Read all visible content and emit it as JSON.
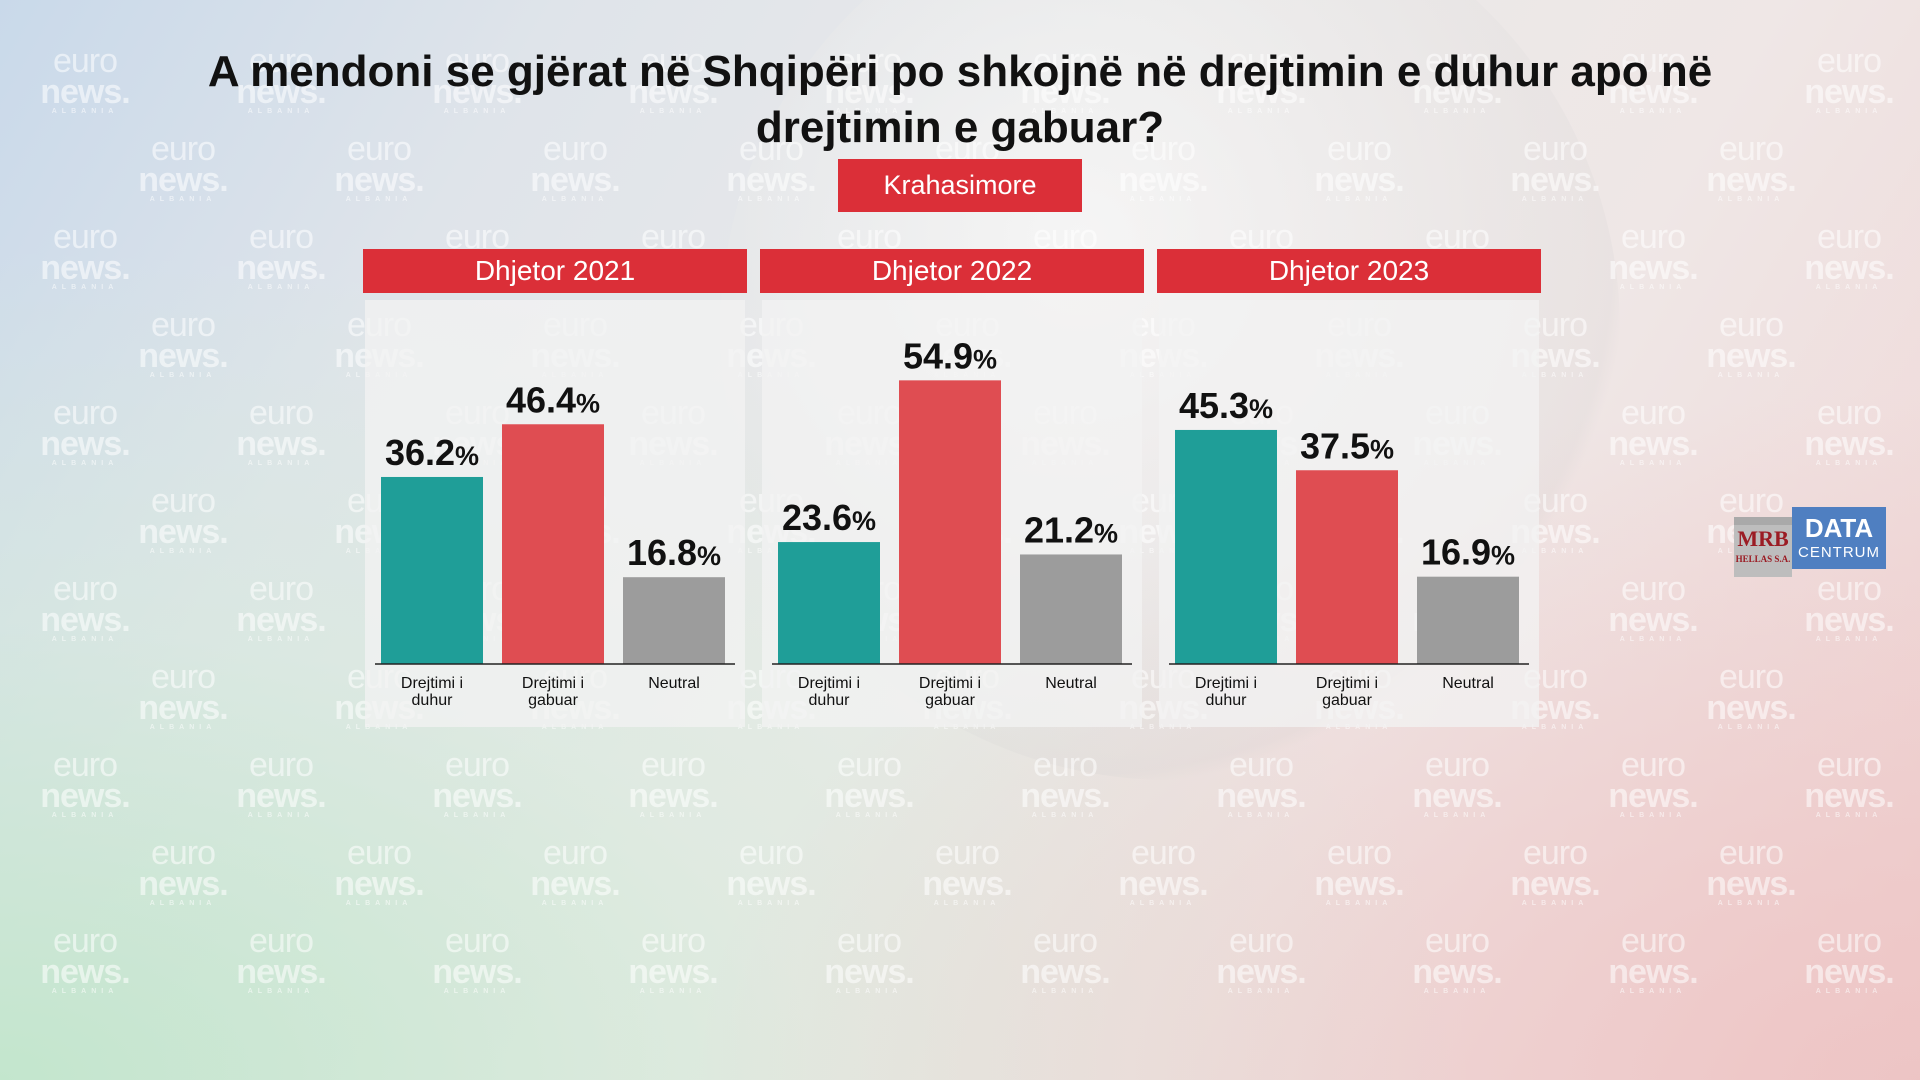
{
  "title": "A mendoni se gjërat në Shqipëri po shkojnë në drejtimin e duhur apo në drejtimin e gabuar?",
  "subtitle_tag": "Krahasimore",
  "watermark": {
    "line1": "euro",
    "line2": "news.",
    "line3": "ALBANIA"
  },
  "logo": {
    "mrb": "MRB",
    "mrb_sub": "HELLAS S.A.",
    "dc_top": "DATA",
    "dc_bottom": "CENTRUM"
  },
  "colors": {
    "accent_red": "#db2f38",
    "teal": "#1f9e98",
    "red_bar": "#df4d52",
    "gray_bar": "#9c9c9c"
  },
  "chart_data": [
    {
      "type": "bar",
      "title": "Dhjetor 2021",
      "categories": [
        "Drejtimi i duhur",
        "Drejtimi i gabuar",
        "Neutral"
      ],
      "values": [
        36.2,
        46.4,
        16.8
      ],
      "value_labels": [
        "36.2",
        "46.4",
        "16.8"
      ],
      "unit": "%",
      "ylim": [
        0,
        60
      ]
    },
    {
      "type": "bar",
      "title": "Dhjetor 2022",
      "categories": [
        "Drejtimi i duhur",
        "Drejtimi i gabuar",
        "Neutral"
      ],
      "values": [
        23.6,
        54.9,
        21.2
      ],
      "value_labels": [
        "23.6",
        "54.9",
        "21.2"
      ],
      "unit": "%",
      "ylim": [
        0,
        60
      ]
    },
    {
      "type": "bar",
      "title": "Dhjetor 2023",
      "categories": [
        "Drejtimi i duhur",
        "Drejtimi i gabuar",
        "Neutral"
      ],
      "values": [
        45.3,
        37.5,
        16.9
      ],
      "value_labels": [
        "45.3",
        "37.5",
        "16.9"
      ],
      "unit": "%",
      "ylim": [
        0,
        60
      ]
    }
  ]
}
